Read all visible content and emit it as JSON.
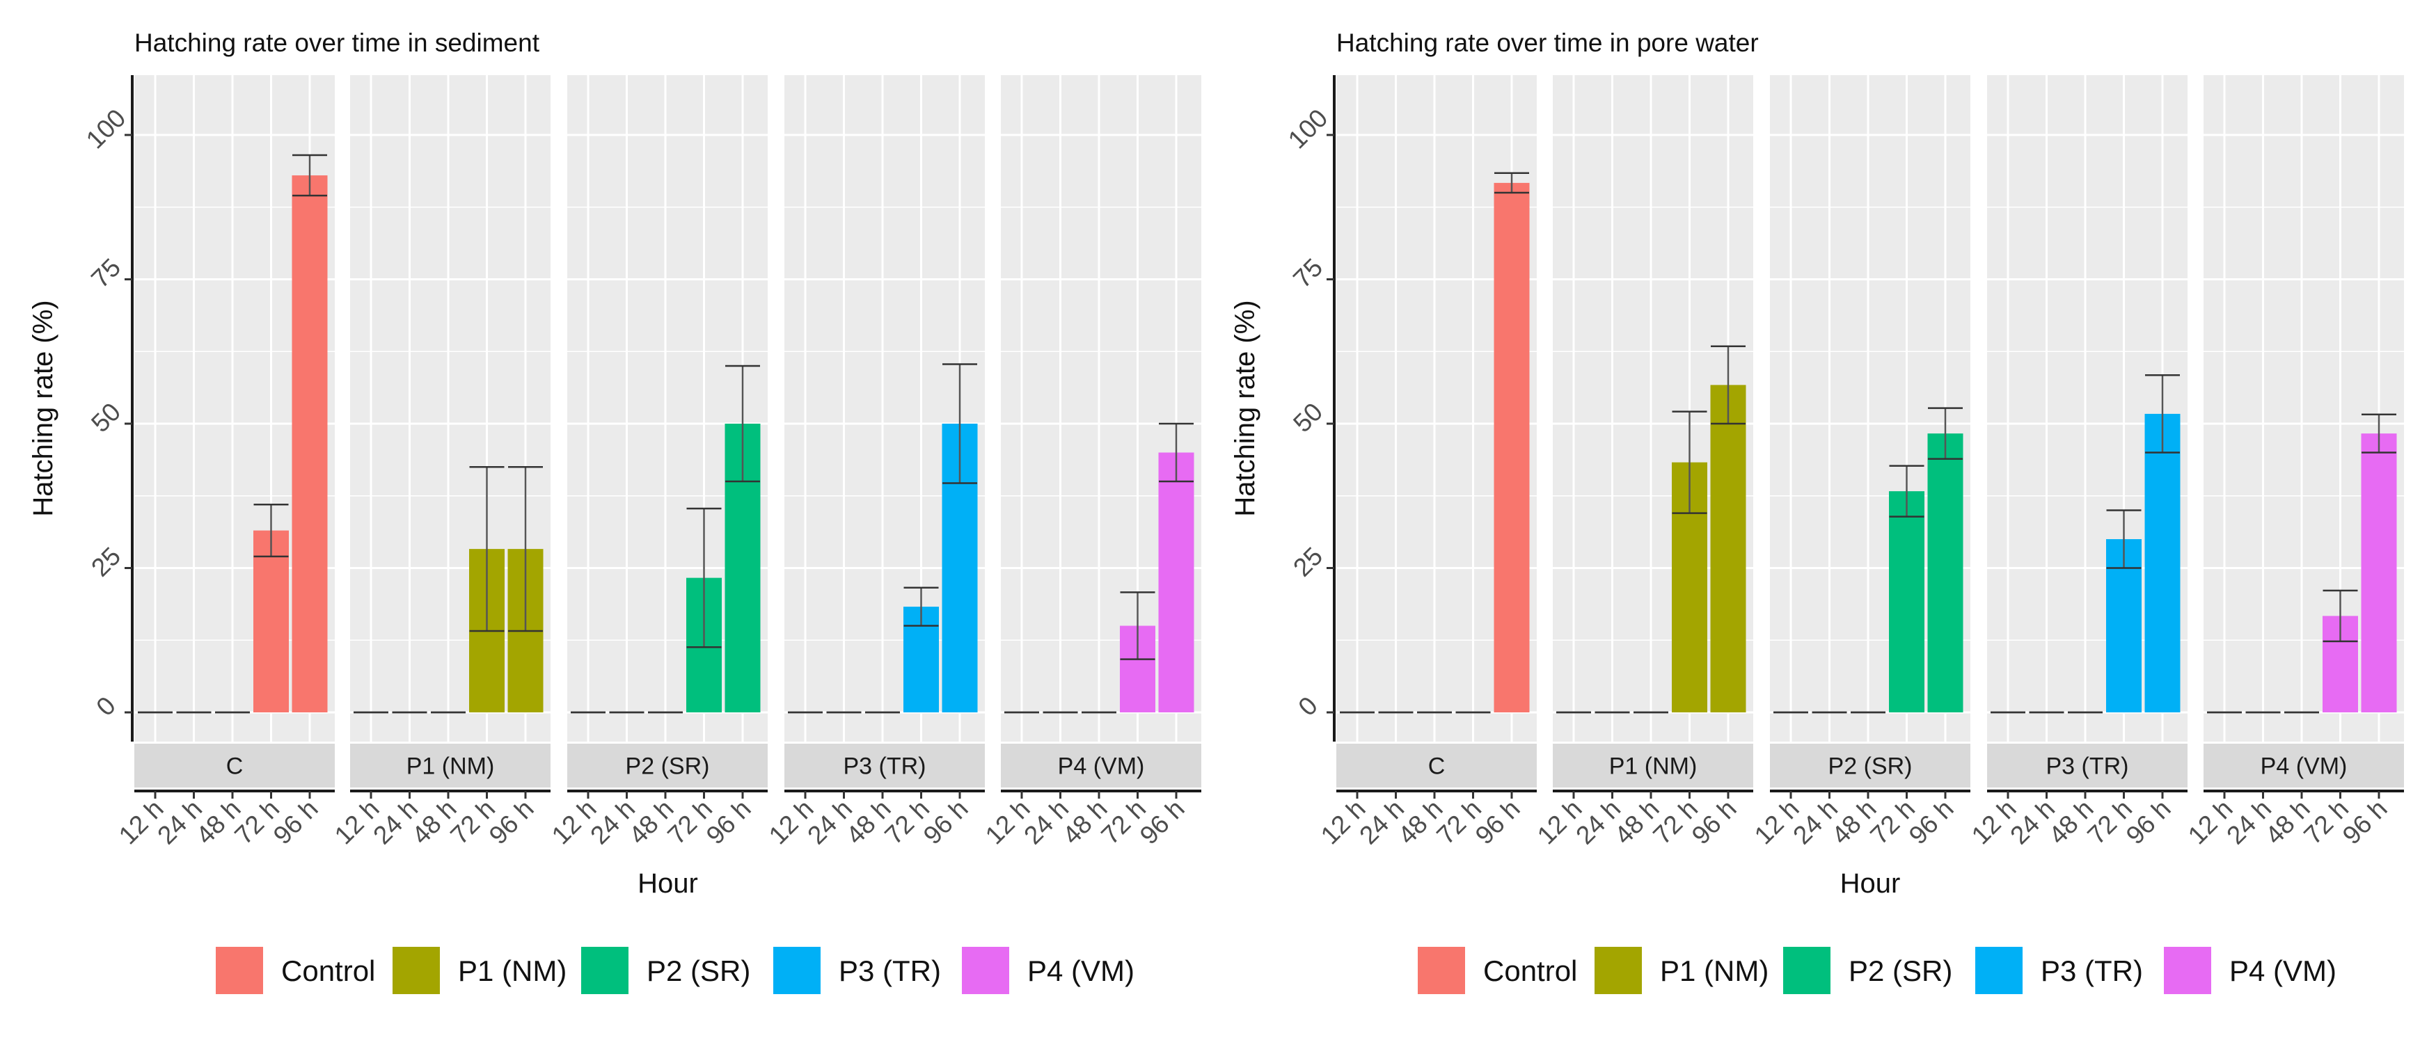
{
  "colors": {
    "Control": "#F8766D",
    "P1 (NM)": "#A3A500",
    "P2 (SR)": "#00BF7D",
    "P3 (TR)": "#00B0F6",
    "P4 (VM)": "#E76BF3"
  },
  "legend": {
    "placement": "bottom",
    "entries": [
      "Control",
      "P1 (NM)",
      "P2 (SR)",
      "P3 (TR)",
      "P4 (VM)"
    ]
  },
  "chart_data": [
    {
      "type": "bar",
      "title": "Hatching rate over time in sediment",
      "xlabel": "Hour",
      "ylabel": "Hatching rate (%)",
      "ylim": [
        -5,
        110
      ],
      "yticks": [
        0,
        25,
        50,
        75,
        100
      ],
      "categories": [
        "12 h",
        "24 h",
        "48 h",
        "72 h",
        "96 h"
      ],
      "grid": true,
      "facets": [
        {
          "label": "C",
          "series": "Control",
          "values": [
            0,
            0,
            0,
            31.5,
            93
          ],
          "errors": [
            0,
            0,
            0,
            4.5,
            3.5
          ]
        },
        {
          "label": "P1 (NM)",
          "series": "P1 (NM)",
          "values": [
            0,
            0,
            0,
            28.3,
            28.3
          ],
          "errors": [
            0,
            0,
            0,
            14.2,
            14.2
          ]
        },
        {
          "label": "P2 (SR)",
          "series": "P2 (SR)",
          "values": [
            0,
            0,
            0,
            23.3,
            50
          ],
          "errors": [
            0,
            0,
            0,
            12,
            10
          ]
        },
        {
          "label": "P3 (TR)",
          "series": "P3 (TR)",
          "values": [
            0,
            0,
            0,
            18.3,
            50
          ],
          "errors": [
            0,
            0,
            0,
            3.3,
            10.3
          ]
        },
        {
          "label": "P4 (VM)",
          "series": "P4 (VM)",
          "values": [
            0,
            0,
            0,
            15,
            45
          ],
          "errors": [
            0,
            0,
            0,
            5.8,
            5
          ]
        }
      ]
    },
    {
      "type": "bar",
      "title": "Hatching rate over time in pore water",
      "xlabel": "Hour",
      "ylabel": "Hatching rate (%)",
      "ylim": [
        -5,
        110
      ],
      "yticks": [
        0,
        25,
        50,
        75,
        100
      ],
      "categories": [
        "12 h",
        "24 h",
        "48 h",
        "72 h",
        "96 h"
      ],
      "grid": true,
      "facets": [
        {
          "label": "C",
          "series": "Control",
          "values": [
            0,
            0,
            0,
            0,
            91.7
          ],
          "errors": [
            0,
            0,
            0,
            0,
            1.7
          ]
        },
        {
          "label": "P1 (NM)",
          "series": "P1 (NM)",
          "values": [
            0,
            0,
            0,
            43.3,
            56.7
          ],
          "errors": [
            0,
            0,
            0,
            8.8,
            6.7
          ]
        },
        {
          "label": "P2 (SR)",
          "series": "P2 (SR)",
          "values": [
            0,
            0,
            0,
            38.3,
            48.3
          ],
          "errors": [
            0,
            0,
            0,
            4.4,
            4.4
          ]
        },
        {
          "label": "P3 (TR)",
          "series": "P3 (TR)",
          "values": [
            0,
            0,
            0,
            30,
            51.7
          ],
          "errors": [
            0,
            0,
            0,
            5,
            6.7
          ]
        },
        {
          "label": "P4 (VM)",
          "series": "P4 (VM)",
          "values": [
            0,
            0,
            0,
            16.7,
            48.3
          ],
          "errors": [
            0,
            0,
            0,
            4.4,
            3.3
          ]
        }
      ]
    }
  ]
}
